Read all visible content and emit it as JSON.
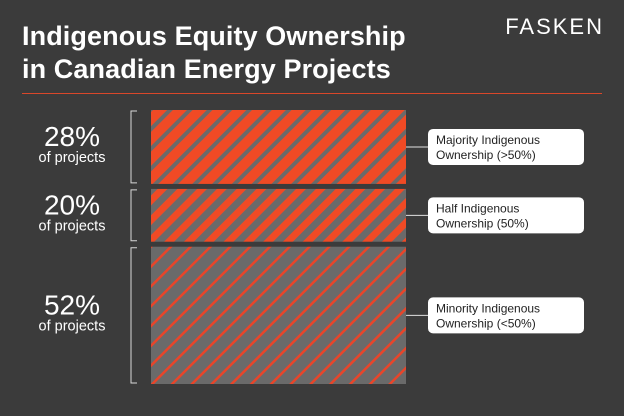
{
  "title_lines": [
    "Indigenous Equity Ownership",
    "in Canadian Energy Projects"
  ],
  "brand": "FASKEN",
  "colors": {
    "accent": "#f04a25",
    "stripe_light": "#6a6a6a",
    "stripe_red": "#e8452a",
    "background": "#3b3b3b"
  },
  "chart_data": {
    "type": "bar",
    "orientation": "stacked-vertical",
    "unit": "% of projects",
    "categories": [
      [
        "Majority Indigenous",
        "Ownership (>50%)"
      ],
      [
        "Half Indigenous",
        "Ownership (50%)"
      ],
      [
        "Minority Indigenous",
        "Ownership (<50%)"
      ]
    ],
    "values": [
      28,
      20,
      52
    ],
    "value_labels": [
      "28%",
      "20%",
      "52%"
    ],
    "sub_label": "of projects"
  }
}
